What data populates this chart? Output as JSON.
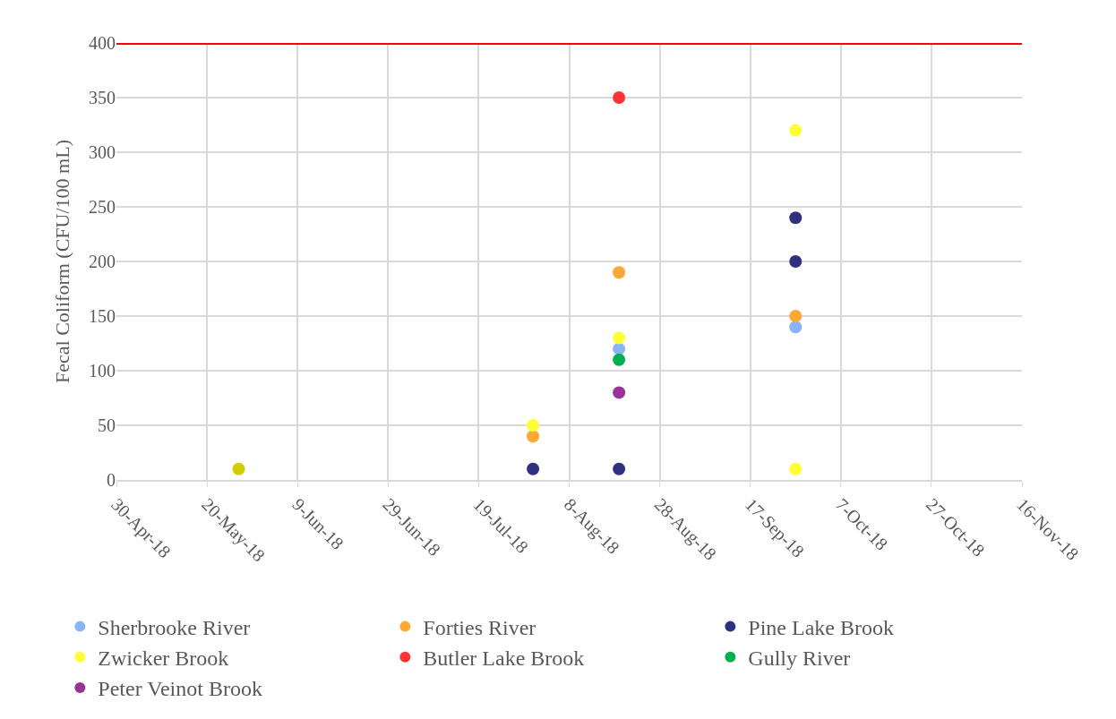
{
  "chart_data": {
    "type": "scatter",
    "ylabel": "Fecal Coliform (CFU/100 mL)",
    "ylim": [
      0,
      400
    ],
    "yticks": [
      0,
      50,
      100,
      150,
      200,
      250,
      300,
      350,
      400
    ],
    "xlim": [
      "2018-04-30",
      "2018-11-16"
    ],
    "xticks": [
      {
        "value": "2018-04-30",
        "label": "30-Apr-18"
      },
      {
        "value": "2018-05-20",
        "label": "20-May-18"
      },
      {
        "value": "2018-06-09",
        "label": "9-Jun-18"
      },
      {
        "value": "2018-06-29",
        "label": "29-Jun-18"
      },
      {
        "value": "2018-07-19",
        "label": "19-Jul-18"
      },
      {
        "value": "2018-08-08",
        "label": "8-Aug-18"
      },
      {
        "value": "2018-08-28",
        "label": "28-Aug-18"
      },
      {
        "value": "2018-09-17",
        "label": "17-Sep-18"
      },
      {
        "value": "2018-10-07",
        "label": "7-Oct-18"
      },
      {
        "value": "2018-10-27",
        "label": "27-Oct-18"
      },
      {
        "value": "2018-11-16",
        "label": "16-Nov-18"
      }
    ],
    "grid": true,
    "legend": "bottom",
    "marker": "circle",
    "ref_lines": [
      {
        "axis": "y",
        "value": 400,
        "label": null,
        "color": "#ff0000"
      }
    ],
    "series": [
      {
        "name": null,
        "color": "#d4cc00",
        "x": [
          "2018-05-27"
        ],
        "values": [
          10
        ]
      },
      {
        "name": "Sherbrooke River",
        "color": "#8ab4f8",
        "x": [
          "2018-08-19",
          "2018-09-27"
        ],
        "values": [
          120,
          140
        ]
      },
      {
        "name": "Forties River",
        "color": "#ffa833",
        "x": [
          "2018-07-31",
          "2018-08-19",
          "2018-09-27"
        ],
        "values": [
          40,
          190,
          150
        ]
      },
      {
        "name": "Pine Lake Brook",
        "color": "#2e3180",
        "x": [
          "2018-07-31",
          "2018-08-19",
          "2018-09-27",
          "2018-09-27"
        ],
        "values": [
          10,
          10,
          240,
          200
        ]
      },
      {
        "name": "Zwicker Brook",
        "color": "#ffff33",
        "x": [
          "2018-07-31",
          "2018-08-19",
          "2018-09-27",
          "2018-09-27"
        ],
        "values": [
          50,
          130,
          320,
          10
        ]
      },
      {
        "name": "Butler Lake Brook",
        "color": "#ff3333",
        "x": [
          "2018-08-19"
        ],
        "values": [
          350
        ]
      },
      {
        "name": "Gully River",
        "color": "#00b050",
        "x": [
          "2018-08-19"
        ],
        "values": [
          110
        ]
      },
      {
        "name": "Peter Veinot Brook",
        "color": "#993399",
        "x": [
          "2018-08-19"
        ],
        "values": [
          80
        ]
      }
    ]
  }
}
